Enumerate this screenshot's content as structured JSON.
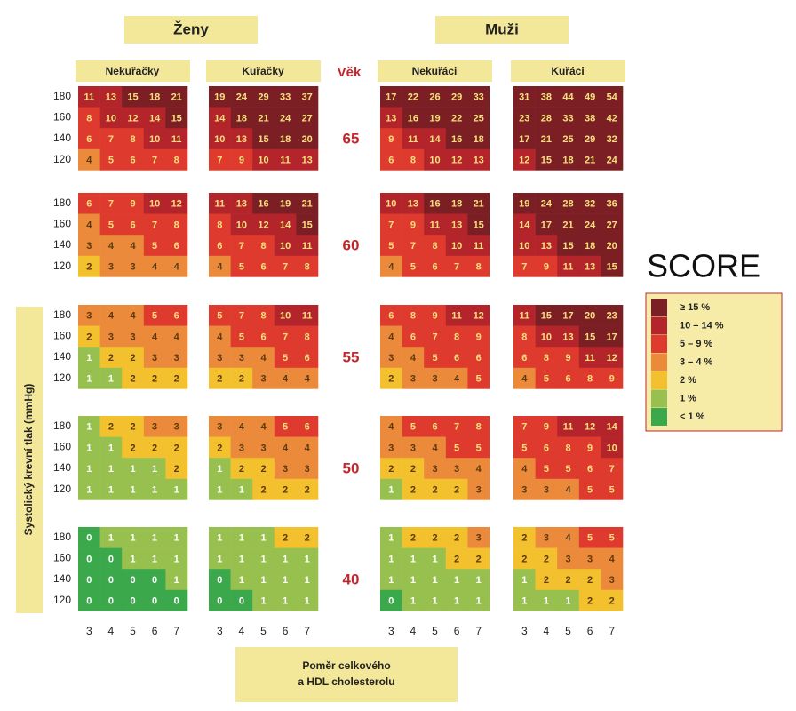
{
  "chart_data": {
    "type": "heatmap",
    "groups": [
      {
        "name": "Ženy",
        "columns": [
          "Nekuřačky",
          "Kuřačky"
        ]
      },
      {
        "name": "Muži",
        "columns": [
          "Nekuřáci",
          "Kuřáci"
        ]
      }
    ],
    "age_title": "Věk",
    "ages": [
      65,
      60,
      55,
      50,
      40
    ],
    "y_categories": [
      180,
      160,
      140,
      120
    ],
    "x_categories": [
      3,
      4,
      5,
      6,
      7
    ],
    "ylabel": "Systolický krevní tlak (mmHg)",
    "xlabel": [
      "Poměr celkového",
      "a HDL cholesterolu"
    ],
    "legend_title": "SCORE",
    "legend": [
      {
        "label": "≥ 15 %",
        "min": 15,
        "color": "#7b1f24"
      },
      {
        "label": "10 – 14 %",
        "min": 10,
        "color": "#b3242b"
      },
      {
        "label": "5 – 9 %",
        "min": 5,
        "color": "#de3a2d"
      },
      {
        "label": "3 – 4 %",
        "min": 3,
        "color": "#ec8a3b"
      },
      {
        "label": "2 %",
        "min": 2,
        "color": "#f4c12e"
      },
      {
        "label": "1 %",
        "min": 1,
        "color": "#98c04f"
      },
      {
        "label": "< 1 %",
        "min": 0,
        "color": "#3aa84b"
      }
    ],
    "values": [
      [
        [
          [
            11,
            13,
            15,
            18,
            21
          ],
          [
            8,
            10,
            12,
            14,
            15
          ],
          [
            6,
            7,
            8,
            10,
            11
          ],
          [
            4,
            5,
            6,
            7,
            8
          ]
        ],
        [
          [
            19,
            24,
            29,
            33,
            37
          ],
          [
            14,
            18,
            21,
            24,
            27
          ],
          [
            10,
            13,
            15,
            18,
            20
          ],
          [
            7,
            9,
            10,
            11,
            13
          ]
        ],
        [
          [
            17,
            22,
            26,
            29,
            33
          ],
          [
            13,
            16,
            19,
            22,
            25
          ],
          [
            9,
            11,
            14,
            16,
            18
          ],
          [
            6,
            8,
            10,
            12,
            13
          ]
        ],
        [
          [
            31,
            38,
            44,
            49,
            54
          ],
          [
            23,
            28,
            33,
            38,
            42
          ],
          [
            17,
            21,
            25,
            29,
            32
          ],
          [
            12,
            15,
            18,
            21,
            24
          ]
        ]
      ],
      [
        [
          [
            6,
            7,
            9,
            10,
            12
          ],
          [
            4,
            5,
            6,
            7,
            8
          ],
          [
            3,
            4,
            4,
            5,
            6
          ],
          [
            2,
            3,
            3,
            4,
            4
          ]
        ],
        [
          [
            11,
            13,
            16,
            19,
            21
          ],
          [
            8,
            10,
            12,
            14,
            15
          ],
          [
            6,
            7,
            8,
            10,
            11
          ],
          [
            4,
            5,
            6,
            7,
            8
          ]
        ],
        [
          [
            10,
            13,
            16,
            18,
            21
          ],
          [
            7,
            9,
            11,
            13,
            15
          ],
          [
            5,
            7,
            8,
            10,
            11
          ],
          [
            4,
            5,
            6,
            7,
            8
          ]
        ],
        [
          [
            19,
            24,
            28,
            32,
            36
          ],
          [
            14,
            17,
            21,
            24,
            27
          ],
          [
            10,
            13,
            15,
            18,
            20
          ],
          [
            7,
            9,
            11,
            13,
            15
          ]
        ]
      ],
      [
        [
          [
            3,
            4,
            4,
            5,
            6
          ],
          [
            2,
            3,
            3,
            4,
            4
          ],
          [
            1,
            2,
            2,
            3,
            3
          ],
          [
            1,
            1,
            2,
            2,
            2
          ]
        ],
        [
          [
            5,
            7,
            8,
            10,
            11
          ],
          [
            4,
            5,
            6,
            7,
            8
          ],
          [
            3,
            3,
            4,
            5,
            6
          ],
          [
            2,
            2,
            3,
            4,
            4
          ]
        ],
        [
          [
            6,
            8,
            9,
            11,
            12
          ],
          [
            4,
            6,
            7,
            8,
            9
          ],
          [
            3,
            4,
            5,
            6,
            6
          ],
          [
            2,
            3,
            3,
            4,
            5
          ]
        ],
        [
          [
            11,
            15,
            17,
            20,
            23
          ],
          [
            8,
            10,
            13,
            15,
            17
          ],
          [
            6,
            8,
            9,
            11,
            12
          ],
          [
            4,
            5,
            6,
            8,
            9
          ]
        ]
      ],
      [
        [
          [
            1,
            2,
            2,
            3,
            3
          ],
          [
            1,
            1,
            2,
            2,
            2
          ],
          [
            1,
            1,
            1,
            1,
            2
          ],
          [
            1,
            1,
            1,
            1,
            1
          ]
        ],
        [
          [
            3,
            4,
            4,
            5,
            6
          ],
          [
            2,
            3,
            3,
            4,
            4
          ],
          [
            1,
            2,
            2,
            3,
            3
          ],
          [
            1,
            1,
            2,
            2,
            2
          ]
        ],
        [
          [
            4,
            5,
            6,
            7,
            8
          ],
          [
            3,
            3,
            4,
            5,
            5
          ],
          [
            2,
            2,
            3,
            3,
            4
          ],
          [
            1,
            2,
            2,
            2,
            3
          ]
        ],
        [
          [
            7,
            9,
            11,
            12,
            14
          ],
          [
            5,
            6,
            8,
            9,
            10
          ],
          [
            4,
            5,
            5,
            6,
            7
          ],
          [
            3,
            3,
            4,
            5,
            5
          ]
        ]
      ],
      [
        [
          [
            0,
            1,
            1,
            1,
            1
          ],
          [
            0,
            0,
            1,
            1,
            1
          ],
          [
            0,
            0,
            0,
            0,
            1
          ],
          [
            0,
            0,
            0,
            0,
            0
          ]
        ],
        [
          [
            1,
            1,
            1,
            2,
            2
          ],
          [
            1,
            1,
            1,
            1,
            1
          ],
          [
            0,
            1,
            1,
            1,
            1
          ],
          [
            0,
            0,
            1,
            1,
            1
          ]
        ],
        [
          [
            1,
            2,
            2,
            2,
            3
          ],
          [
            1,
            1,
            1,
            2,
            2
          ],
          [
            1,
            1,
            1,
            1,
            1
          ],
          [
            0,
            1,
            1,
            1,
            1
          ]
        ],
        [
          [
            2,
            3,
            4,
            5,
            5
          ],
          [
            2,
            2,
            3,
            3,
            4
          ],
          [
            1,
            2,
            2,
            2,
            3
          ],
          [
            1,
            1,
            1,
            2,
            2
          ]
        ]
      ]
    ]
  }
}
